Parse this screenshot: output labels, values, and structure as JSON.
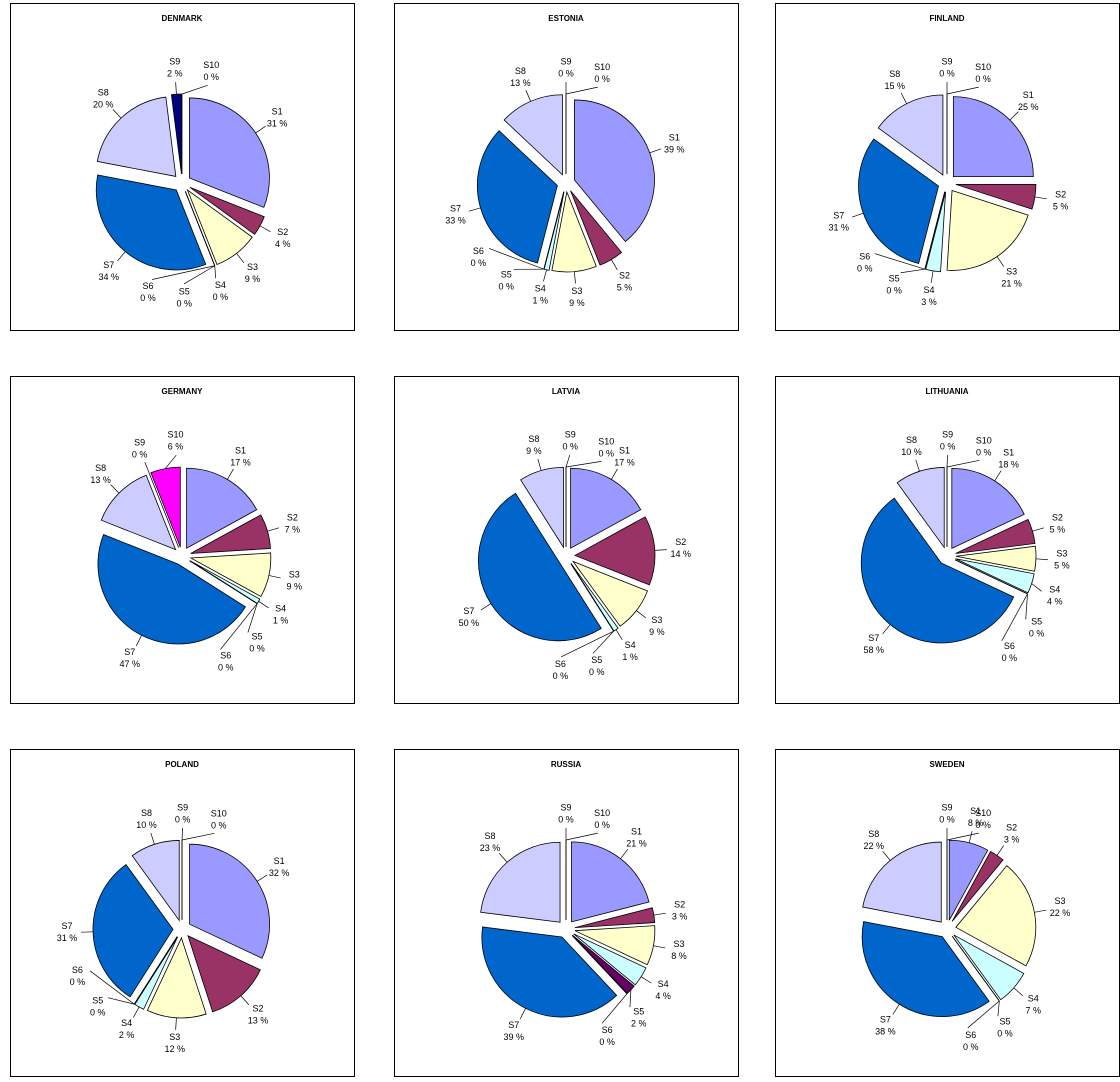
{
  "chart_data": [
    {
      "type": "pie",
      "title": "DENMARK",
      "categories": [
        "S1",
        "S2",
        "S3",
        "S4",
        "S5",
        "S6",
        "S7",
        "S8",
        "S9",
        "S10"
      ],
      "values": [
        31,
        4,
        9,
        0,
        0,
        0,
        34,
        20,
        2,
        0
      ],
      "value_labels": [
        "31 %",
        "4 %",
        "9 %",
        "0 %",
        "0 %",
        "0 %",
        "34 %",
        "20 %",
        "2 %",
        "0 %"
      ],
      "colors": [
        "#9999ff",
        "#993366",
        "#ffffcc",
        "#ccffff",
        "#660066",
        "#ff8080",
        "#0066cc",
        "#ccccff",
        "#000080",
        "#ff00ff"
      ]
    },
    {
      "type": "pie",
      "title": "ESTONIA",
      "categories": [
        "S1",
        "S2",
        "S3",
        "S4",
        "S5",
        "S6",
        "S7",
        "S8",
        "S9",
        "S10"
      ],
      "values": [
        39,
        5,
        9,
        1,
        0,
        0,
        33,
        13,
        0,
        0
      ],
      "value_labels": [
        "39 %",
        "5 %",
        "9 %",
        "1 %",
        "0 %",
        "0 %",
        "33 %",
        "13 %",
        "0 %",
        "0 %"
      ],
      "colors": [
        "#9999ff",
        "#993366",
        "#ffffcc",
        "#ccffff",
        "#660066",
        "#ff8080",
        "#0066cc",
        "#ccccff",
        "#000080",
        "#ff00ff"
      ]
    },
    {
      "type": "pie",
      "title": "FINLAND",
      "categories": [
        "S1",
        "S2",
        "S3",
        "S4",
        "S5",
        "S6",
        "S7",
        "S8",
        "S9",
        "S10"
      ],
      "values": [
        25,
        5,
        21,
        3,
        0,
        0,
        31,
        15,
        0,
        0
      ],
      "value_labels": [
        "25 %",
        "5 %",
        "21 %",
        "3 %",
        "0 %",
        "0 %",
        "31 %",
        "15 %",
        "0 %",
        "0 %"
      ],
      "colors": [
        "#9999ff",
        "#993366",
        "#ffffcc",
        "#ccffff",
        "#660066",
        "#ff8080",
        "#0066cc",
        "#ccccff",
        "#000080",
        "#ff00ff"
      ]
    },
    {
      "type": "pie",
      "title": "GERMANY",
      "categories": [
        "S1",
        "S2",
        "S3",
        "S4",
        "S5",
        "S6",
        "S7",
        "S8",
        "S9",
        "S10"
      ],
      "values": [
        17,
        7,
        9,
        1,
        0,
        0,
        47,
        13,
        0,
        6
      ],
      "value_labels": [
        "17 %",
        "7 %",
        "9 %",
        "1 %",
        "0 %",
        "0 %",
        "47 %",
        "13 %",
        "0 %",
        "6 %"
      ],
      "colors": [
        "#9999ff",
        "#993366",
        "#ffffcc",
        "#ccffff",
        "#660066",
        "#ff8080",
        "#0066cc",
        "#ccccff",
        "#000080",
        "#ff00ff"
      ]
    },
    {
      "type": "pie",
      "title": "LATVIA",
      "categories": [
        "S1",
        "S2",
        "S3",
        "S4",
        "S5",
        "S6",
        "S7",
        "S8",
        "S9",
        "S10"
      ],
      "values": [
        17,
        14,
        9,
        1,
        0,
        0,
        50,
        9,
        0,
        0
      ],
      "value_labels": [
        "17 %",
        "14 %",
        "9 %",
        "1 %",
        "0 %",
        "0 %",
        "50 %",
        "9 %",
        "0 %",
        "0 %"
      ],
      "colors": [
        "#9999ff",
        "#993366",
        "#ffffcc",
        "#ccffff",
        "#660066",
        "#ff8080",
        "#0066cc",
        "#ccccff",
        "#000080",
        "#ff00ff"
      ]
    },
    {
      "type": "pie",
      "title": "LITHUANIA",
      "categories": [
        "S1",
        "S2",
        "S3",
        "S4",
        "S5",
        "S6",
        "S7",
        "S8",
        "S9",
        "S10"
      ],
      "values": [
        18,
        5,
        5,
        4,
        0,
        0,
        58,
        10,
        0,
        0
      ],
      "value_labels": [
        "18 %",
        "5 %",
        "5 %",
        "4 %",
        "0 %",
        "0 %",
        "58 %",
        "10 %",
        "0 %",
        "0 %"
      ],
      "colors": [
        "#9999ff",
        "#993366",
        "#ffffcc",
        "#ccffff",
        "#660066",
        "#ff8080",
        "#0066cc",
        "#ccccff",
        "#000080",
        "#ff00ff"
      ]
    },
    {
      "type": "pie",
      "title": "POLAND",
      "categories": [
        "S1",
        "S2",
        "S3",
        "S4",
        "S5",
        "S6",
        "S7",
        "S8",
        "S9",
        "S10"
      ],
      "values": [
        32,
        13,
        12,
        2,
        0,
        0,
        31,
        10,
        0,
        0
      ],
      "value_labels": [
        "32 %",
        "13 %",
        "12 %",
        "2 %",
        "0 %",
        "0 %",
        "31 %",
        "10 %",
        "0 %",
        "0 %"
      ],
      "colors": [
        "#9999ff",
        "#993366",
        "#ffffcc",
        "#ccffff",
        "#660066",
        "#ff8080",
        "#0066cc",
        "#ccccff",
        "#000080",
        "#ff00ff"
      ]
    },
    {
      "type": "pie",
      "title": "RUSSIA",
      "categories": [
        "S1",
        "S2",
        "S3",
        "S4",
        "S5",
        "S6",
        "S7",
        "S8",
        "S9",
        "S10"
      ],
      "values": [
        21,
        3,
        8,
        4,
        2,
        0,
        39,
        23,
        0,
        0
      ],
      "value_labels": [
        "21 %",
        "3 %",
        "8 %",
        "4 %",
        "2 %",
        "0 %",
        "39 %",
        "23 %",
        "0 %",
        "0 %"
      ],
      "colors": [
        "#9999ff",
        "#993366",
        "#ffffcc",
        "#ccffff",
        "#660066",
        "#ff8080",
        "#0066cc",
        "#ccccff",
        "#000080",
        "#ff00ff"
      ]
    },
    {
      "type": "pie",
      "title": "SWEDEN",
      "categories": [
        "S1",
        "S2",
        "S3",
        "S4",
        "S5",
        "S6",
        "S7",
        "S8",
        "S9",
        "S10"
      ],
      "values": [
        8,
        3,
        22,
        7,
        0,
        0,
        38,
        22,
        0,
        0
      ],
      "value_labels": [
        "8 %",
        "3 %",
        "22 %",
        "7 %",
        "0 %",
        "0 %",
        "38 %",
        "22 %",
        "0 %",
        "0 %"
      ],
      "colors": [
        "#9999ff",
        "#993366",
        "#ffffcc",
        "#ccffff",
        "#660066",
        "#ff8080",
        "#0066cc",
        "#ccccff",
        "#000080",
        "#ff00ff"
      ]
    }
  ]
}
